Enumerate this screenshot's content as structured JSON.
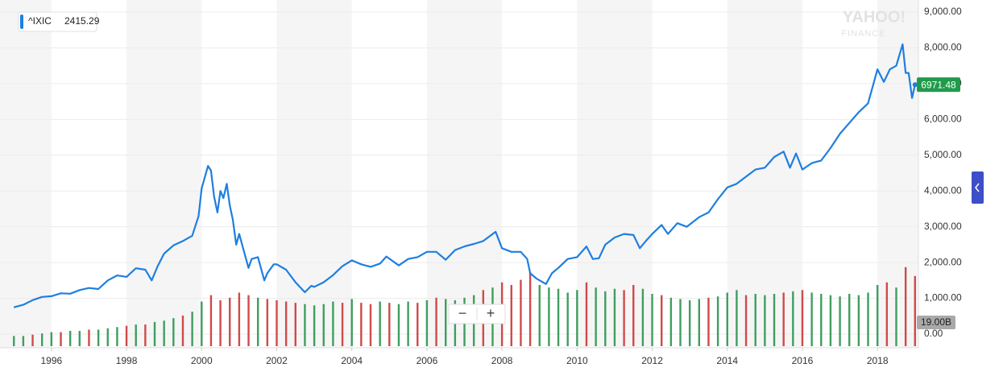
{
  "chart_data": {
    "type": "line",
    "legend_symbol": "^IXIC",
    "legend_value": 2415.29,
    "watermark": "YAHOO!",
    "watermark_sub": "FINANCE",
    "volume_label": "19.00B",
    "zoom_out": "−",
    "zoom_in": "+",
    "xlim": [
      1994.63,
      2019.09
    ],
    "xticks": [
      1996,
      1998,
      2000,
      2002,
      2004,
      2006,
      2008,
      2010,
      2012,
      2014,
      2016,
      2018
    ],
    "ylim": [
      -382.5,
      9225
    ],
    "yticks": [
      {
        "value": 0,
        "label": "0.00"
      },
      {
        "value": 1000,
        "label": "1,000.00"
      },
      {
        "value": 2000,
        "label": "2,000.00"
      },
      {
        "value": 3000,
        "label": "3,000.00"
      },
      {
        "value": 4000,
        "label": "4,000.00"
      },
      {
        "value": 5000,
        "label": "5,000.00"
      },
      {
        "value": 6000,
        "label": "6,000.00"
      },
      {
        "value": 7000,
        "label": "7,000.00"
      },
      {
        "value": 8000,
        "label": "8,000.00"
      },
      {
        "value": 9000,
        "label": "9,000.00"
      }
    ],
    "y2lim": [
      0,
      130
    ],
    "grid": true,
    "series": [
      {
        "name": "^IXIC",
        "color": "#1e7fe0",
        "x": [
          1995.0,
          1995.25,
          1995.5,
          1995.75,
          1996.0,
          1996.25,
          1996.5,
          1996.75,
          1997.0,
          1997.25,
          1997.5,
          1997.75,
          1998.0,
          1998.25,
          1998.5,
          1998.67,
          1998.83,
          1999.0,
          1999.25,
          1999.5,
          1999.75,
          1999.92,
          2000.0,
          2000.17,
          2000.25,
          2000.33,
          2000.42,
          2000.5,
          2000.58,
          2000.67,
          2000.75,
          2000.83,
          2000.92,
          2001.0,
          2001.17,
          2001.25,
          2001.33,
          2001.5,
          2001.67,
          2001.75,
          2001.92,
          2002.0,
          2002.25,
          2002.5,
          2002.75,
          2002.92,
          2003.0,
          2003.25,
          2003.5,
          2003.75,
          2004.0,
          2004.25,
          2004.5,
          2004.75,
          2004.92,
          2005.25,
          2005.5,
          2005.75,
          2006.0,
          2006.25,
          2006.5,
          2006.75,
          2007.0,
          2007.25,
          2007.5,
          2007.83,
          2008.0,
          2008.25,
          2008.5,
          2008.67,
          2008.75,
          2008.92,
          2009.17,
          2009.33,
          2009.5,
          2009.75,
          2010.0,
          2010.25,
          2010.42,
          2010.58,
          2010.75,
          2011.0,
          2011.25,
          2011.5,
          2011.67,
          2011.83,
          2012.0,
          2012.25,
          2012.42,
          2012.67,
          2012.92,
          2013.25,
          2013.5,
          2013.75,
          2014.0,
          2014.25,
          2014.5,
          2014.75,
          2015.0,
          2015.25,
          2015.5,
          2015.67,
          2015.83,
          2016.0,
          2016.25,
          2016.5,
          2016.75,
          2017.0,
          2017.25,
          2017.5,
          2017.75,
          2018.0,
          2018.17,
          2018.33,
          2018.5,
          2018.67,
          2018.75,
          2018.83,
          2018.92,
          2019.0
        ],
        "values": [
          750,
          820,
          950,
          1040,
          1060,
          1140,
          1130,
          1230,
          1290,
          1260,
          1500,
          1640,
          1600,
          1840,
          1800,
          1500,
          1900,
          2250,
          2480,
          2600,
          2750,
          3300,
          4070,
          4700,
          4570,
          3850,
          3400,
          4000,
          3800,
          4200,
          3600,
          3200,
          2500,
          2800,
          2150,
          1850,
          2100,
          2150,
          1500,
          1700,
          1950,
          1950,
          1800,
          1450,
          1170,
          1350,
          1320,
          1450,
          1650,
          1900,
          2060,
          1950,
          1880,
          1970,
          2170,
          1920,
          2100,
          2150,
          2300,
          2300,
          2080,
          2350,
          2450,
          2520,
          2600,
          2860,
          2400,
          2300,
          2300,
          2100,
          1700,
          1550,
          1400,
          1700,
          1850,
          2100,
          2150,
          2450,
          2100,
          2120,
          2500,
          2700,
          2800,
          2770,
          2400,
          2600,
          2800,
          3050,
          2800,
          3100,
          3000,
          3270,
          3400,
          3770,
          4100,
          4200,
          4400,
          4600,
          4650,
          4950,
          5100,
          4650,
          5050,
          4600,
          4780,
          4850,
          5200,
          5600,
          5900,
          6200,
          6450,
          7400,
          7050,
          7400,
          7500,
          8100,
          7300,
          7300,
          6600,
          6971.48
        ]
      },
      {
        "name": "Volume",
        "type": "bar",
        "axis": "y2",
        "x": [
          1995.0,
          1995.25,
          1995.5,
          1995.75,
          1996.0,
          1996.25,
          1996.5,
          1996.75,
          1997.0,
          1997.25,
          1997.5,
          1997.75,
          1998.0,
          1998.25,
          1998.5,
          1998.75,
          1999.0,
          1999.25,
          1999.5,
          1999.75,
          2000.0,
          2000.25,
          2000.5,
          2000.75,
          2001.0,
          2001.25,
          2001.5,
          2001.75,
          2002.0,
          2002.25,
          2002.5,
          2002.75,
          2003.0,
          2003.25,
          2003.5,
          2003.75,
          2004.0,
          2004.25,
          2004.5,
          2004.75,
          2005.0,
          2005.25,
          2005.5,
          2005.75,
          2006.0,
          2006.25,
          2006.5,
          2006.75,
          2007.0,
          2007.25,
          2007.5,
          2007.75,
          2008.0,
          2008.25,
          2008.5,
          2008.75,
          2009.0,
          2009.25,
          2009.5,
          2009.75,
          2010.0,
          2010.25,
          2010.5,
          2010.75,
          2011.0,
          2011.25,
          2011.5,
          2011.75,
          2012.0,
          2012.25,
          2012.5,
          2012.75,
          2013.0,
          2013.25,
          2013.5,
          2013.75,
          2014.0,
          2014.25,
          2014.5,
          2014.75,
          2015.0,
          2015.25,
          2015.5,
          2015.75,
          2016.0,
          2016.25,
          2016.5,
          2016.75,
          2017.0,
          2017.25,
          2017.5,
          2017.75,
          2018.0,
          2018.25,
          2018.5,
          2018.75,
          2019.0
        ],
        "values": [
          8,
          8,
          9,
          10,
          11,
          11,
          12,
          12,
          13,
          13,
          14,
          15,
          16,
          17,
          17,
          19,
          20,
          22,
          24,
          27,
          35,
          40,
          36,
          38,
          42,
          40,
          38,
          37,
          36,
          35,
          34,
          33,
          32,
          33,
          35,
          34,
          37,
          34,
          33,
          35,
          34,
          33,
          35,
          34,
          36,
          38,
          37,
          36,
          38,
          40,
          44,
          46,
          50,
          48,
          52,
          58,
          48,
          46,
          45,
          42,
          44,
          50,
          46,
          43,
          45,
          44,
          48,
          45,
          41,
          40,
          38,
          37,
          36,
          37,
          38,
          39,
          42,
          44,
          40,
          41,
          40,
          41,
          42,
          43,
          44,
          42,
          41,
          40,
          39,
          41,
          40,
          42,
          48,
          50,
          46,
          62,
          55
        ],
        "colors": [
          "#3f9e5f",
          "#3f9e5f",
          "#d04a4a",
          "#3f9e5f",
          "#3f9e5f",
          "#d04a4a",
          "#3f9e5f",
          "#3f9e5f",
          "#d04a4a",
          "#3f9e5f",
          "#3f9e5f",
          "#3f9e5f",
          "#d04a4a",
          "#3f9e5f",
          "#d04a4a",
          "#3f9e5f",
          "#3f9e5f",
          "#3f9e5f",
          "#d04a4a",
          "#3f9e5f",
          "#3f9e5f",
          "#d04a4a",
          "#d04a4a",
          "#d04a4a",
          "#d04a4a",
          "#d04a4a",
          "#3f9e5f",
          "#d04a4a",
          "#d04a4a",
          "#d04a4a",
          "#d04a4a",
          "#3f9e5f",
          "#3f9e5f",
          "#3f9e5f",
          "#3f9e5f",
          "#d04a4a",
          "#3f9e5f",
          "#d04a4a",
          "#d04a4a",
          "#3f9e5f",
          "#d04a4a",
          "#3f9e5f",
          "#3f9e5f",
          "#d04a4a",
          "#3f9e5f",
          "#d04a4a",
          "#3f9e5f",
          "#3f9e5f",
          "#3f9e5f",
          "#3f9e5f",
          "#d04a4a",
          "#3f9e5f",
          "#d04a4a",
          "#d04a4a",
          "#d04a4a",
          "#d04a4a",
          "#3f9e5f",
          "#3f9e5f",
          "#3f9e5f",
          "#3f9e5f",
          "#3f9e5f",
          "#d04a4a",
          "#3f9e5f",
          "#3f9e5f",
          "#3f9e5f",
          "#d04a4a",
          "#d04a4a",
          "#3f9e5f",
          "#3f9e5f",
          "#d04a4a",
          "#3f9e5f",
          "#3f9e5f",
          "#3f9e5f",
          "#3f9e5f",
          "#d04a4a",
          "#3f9e5f",
          "#3f9e5f",
          "#3f9e5f",
          "#d04a4a",
          "#3f9e5f",
          "#3f9e5f",
          "#3f9e5f",
          "#d04a4a",
          "#3f9e5f",
          "#d04a4a",
          "#3f9e5f",
          "#3f9e5f",
          "#3f9e5f",
          "#3f9e5f",
          "#3f9e5f",
          "#3f9e5f",
          "#3f9e5f",
          "#3f9e5f",
          "#d04a4a",
          "#3f9e5f",
          "#d04a4a",
          "#d04a4a"
        ]
      }
    ]
  }
}
